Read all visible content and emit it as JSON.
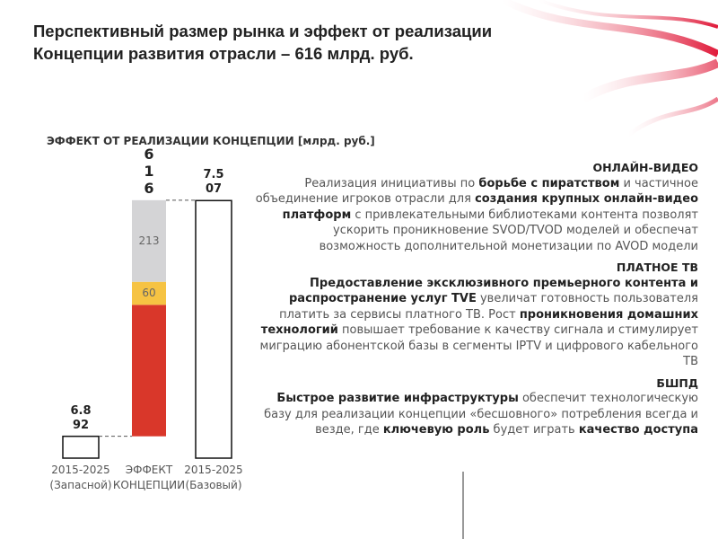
{
  "title_lines": [
    "Перспективный размер рынка и эффект от реализации",
    "Концепции развития отрасли – 616 млрд. руб."
  ],
  "chart_data": {
    "type": "waterfall",
    "title": "ЭФФЕКТ ОТ РЕАЛИЗАЦИИ КОНЦЕПЦИИ [млрд. руб.]",
    "categories": [
      [
        "2015-2025",
        "(Запасной)"
      ],
      [
        "ЭФФЕКТ",
        "КОНЦЕПЦИИ"
      ],
      [
        "2015-2025",
        "(Базовый)"
      ]
    ],
    "values": [
      6892,
      616,
      7507
    ],
    "value_labels": [
      "6.892",
      "616",
      "7.507"
    ],
    "segments": [
      {
        "value": 343,
        "color": "#d9372a"
      },
      {
        "value": 60,
        "color": "#f6c343",
        "show_label": true
      },
      {
        "value": 213,
        "color": "#d4d4d6",
        "show_label": true
      }
    ],
    "ylim": [
      6835,
      7510
    ]
  },
  "sections": [
    {
      "heading": "ОНЛАЙН-ВИДЕО",
      "runs": [
        {
          "text": "Реализация инициативы по ",
          "bold": false
        },
        {
          "text": "борьбе с пиратством",
          "bold": true
        },
        {
          "text": " и частичное объединение игроков отрасли для ",
          "bold": false
        },
        {
          "text": "создания крупных онлайн-видео платформ",
          "bold": true
        },
        {
          "text": " с привлекательными библиотеками контента позволят ускорить проникновение SVOD/TVOD моделей и обеспечат возможность дополнительной монетизации по AVOD модели",
          "bold": false
        }
      ]
    },
    {
      "heading": "ПЛАТНОЕ ТВ",
      "runs": [
        {
          "text": "Предоставление эксклюзивного премьерного контента и распространение услуг TVE",
          "bold": true
        },
        {
          "text": " увеличат готовность пользователя платить за сервисы платного ТВ. Рост ",
          "bold": false
        },
        {
          "text": "проникновения домашних технологий",
          "bold": true
        },
        {
          "text": " повышает требование к качеству сигнала и стимулирует миграцию абонентской базы в сегменты IPTV и цифрового кабельного ТВ",
          "bold": false
        }
      ]
    },
    {
      "heading": "БШПД",
      "runs": [
        {
          "text": "Быстрое развитие инфраструктуры",
          "bold": true
        },
        {
          "text": " обеспечит технологическую базу для реализации концепции «бесшовного» потребления всегда и везде, где ",
          "bold": false
        },
        {
          "text": "ключевую роль",
          "bold": true
        },
        {
          "text": " будет играть ",
          "bold": false
        },
        {
          "text": "качество доступа",
          "bold": true
        }
      ]
    }
  ]
}
